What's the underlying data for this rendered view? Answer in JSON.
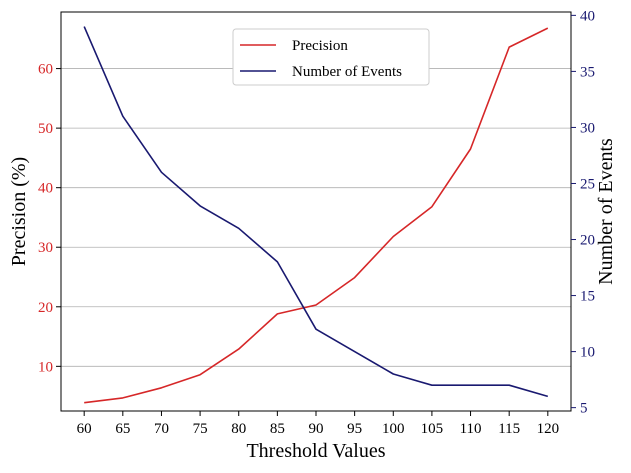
{
  "chart_data": {
    "type": "line",
    "x": [
      60,
      65,
      70,
      75,
      80,
      85,
      90,
      95,
      100,
      105,
      110,
      115,
      120
    ],
    "xlabel": "Threshold Values",
    "x_ticks": [
      "60",
      "65",
      "70",
      "75",
      "80",
      "85",
      "90",
      "95",
      "100",
      "105",
      "110",
      "115",
      "120"
    ],
    "grid": "horizontal, left axis",
    "legend_position": "top-center",
    "left_axis": {
      "label": "Precision (%)",
      "range": [
        2.5,
        69.5
      ],
      "ticks": [
        "10",
        "20",
        "30",
        "40",
        "50",
        "60"
      ],
      "tick_values": [
        10,
        20,
        30,
        40,
        50,
        60
      ],
      "color": "#d62728"
    },
    "right_axis": {
      "label": "Number of Events",
      "range": [
        4.7,
        40.3
      ],
      "ticks": [
        "5",
        "10",
        "15",
        "20",
        "25",
        "30",
        "35",
        "40"
      ],
      "tick_values": [
        5,
        10,
        15,
        20,
        25,
        30,
        35,
        40
      ],
      "color": "#191970"
    },
    "series": [
      {
        "name": "Precision",
        "axis": "left",
        "color": "#d62728",
        "values": [
          3.9,
          4.7,
          6.4,
          8.6,
          12.9,
          18.8,
          20.3,
          24.9,
          31.8,
          36.8,
          46.5,
          63.6,
          66.8
        ]
      },
      {
        "name": "Number of Events",
        "axis": "right",
        "color": "#191970",
        "values": [
          39,
          31,
          26,
          23,
          21,
          18,
          12,
          10,
          8,
          7,
          7,
          7,
          6
        ]
      }
    ]
  }
}
